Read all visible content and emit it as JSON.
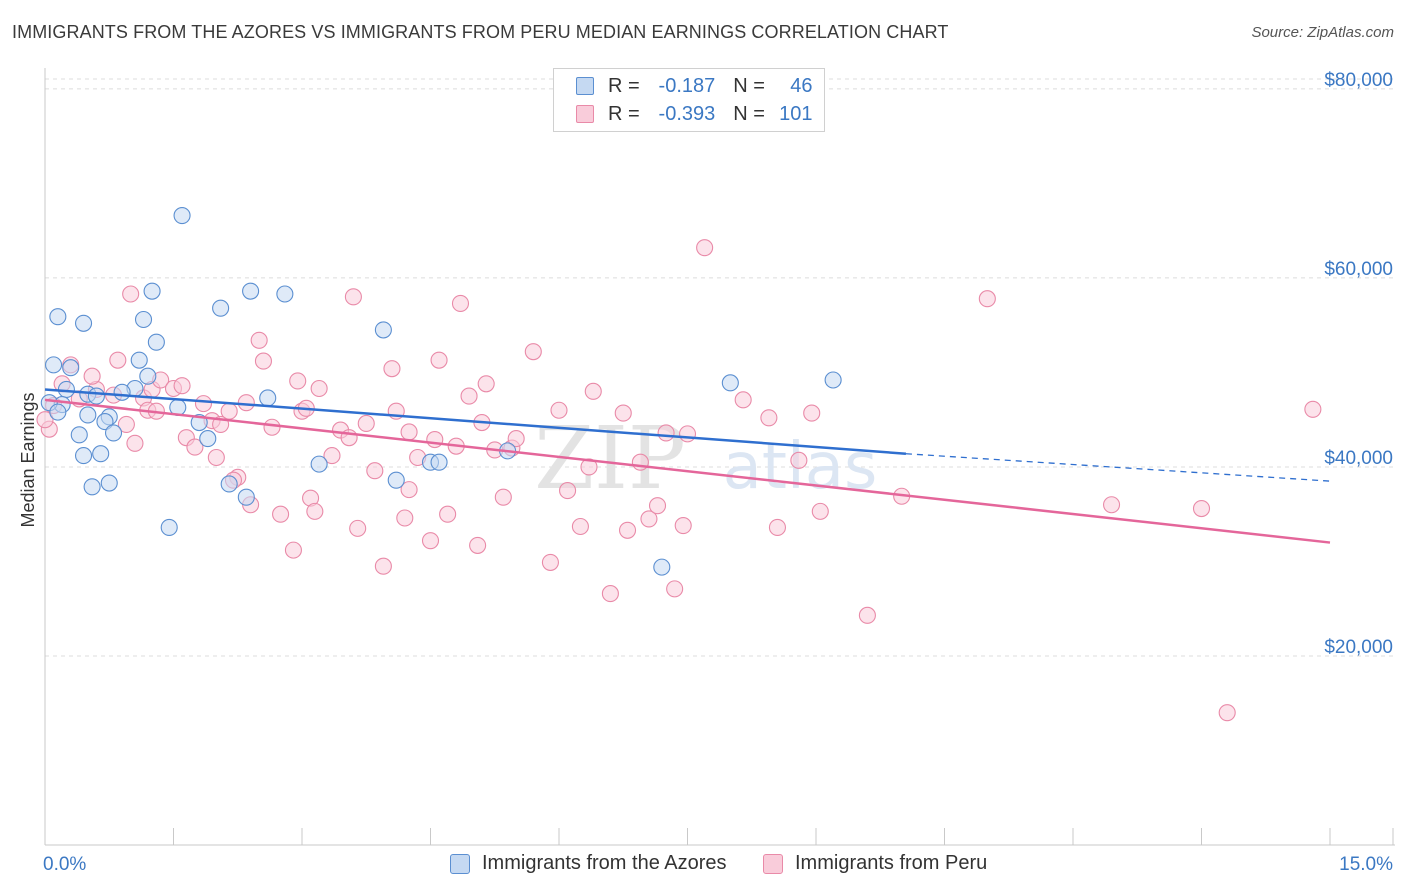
{
  "title": "IMMIGRANTS FROM THE AZORES VS IMMIGRANTS FROM PERU MEDIAN EARNINGS CORRELATION CHART",
  "source": "Source: ZipAtlas.com",
  "watermark": {
    "zip": "ZIP",
    "atlas": "atlas"
  },
  "legend": {
    "rows": [
      {
        "r_label": "R =",
        "r_value": "-0.187",
        "n_label": "N =",
        "n_value": "46",
        "fill": "#c5d9f2",
        "stroke": "#5b8fd1"
      },
      {
        "r_label": "R =",
        "r_value": "-0.393",
        "n_label": "N =",
        "n_value": "101",
        "fill": "#f9ccda",
        "stroke": "#e98aa8"
      }
    ]
  },
  "colors": {
    "azores_fill": "#c5d9f2",
    "azores_stroke": "#5b8fd1",
    "azores_line": "#2f6fcf",
    "peru_fill": "#f9ccda",
    "peru_stroke": "#e98aa8",
    "peru_line": "#e4669a",
    "axis_label": "#3b78c3",
    "grid": "#dcdcdc"
  },
  "chart_data": {
    "type": "scatter",
    "title": "IMMIGRANTS FROM THE AZORES VS IMMIGRANTS FROM PERU MEDIAN EARNINGS CORRELATION CHART",
    "xlabel": "",
    "ylabel": "Median Earnings",
    "xlim": [
      0,
      15
    ],
    "ylim": [
      0,
      82000
    ],
    "x_tick_labels": [
      "0.0%",
      "15.0%"
    ],
    "y_ticks": [
      20000,
      40000,
      60000,
      80000
    ],
    "y_tick_labels": [
      "$20,000",
      "$40,000",
      "$60,000",
      "$80,000"
    ],
    "grid": "horizontal dashed",
    "legend_position": "bottom",
    "series": [
      {
        "name": "Immigrants from the Azores",
        "color": "#5b8fd1",
        "points": [
          [
            0.15,
            55900
          ],
          [
            0.45,
            55200
          ],
          [
            0.1,
            50800
          ],
          [
            0.3,
            50500
          ],
          [
            0.25,
            48200
          ],
          [
            0.5,
            47700
          ],
          [
            0.6,
            47500
          ],
          [
            0.2,
            46600
          ],
          [
            0.05,
            46800
          ],
          [
            0.15,
            45800
          ],
          [
            0.5,
            45500
          ],
          [
            0.75,
            45300
          ],
          [
            0.7,
            44800
          ],
          [
            0.4,
            43400
          ],
          [
            0.8,
            43600
          ],
          [
            0.45,
            41200
          ],
          [
            0.65,
            41400
          ],
          [
            0.55,
            37900
          ],
          [
            0.75,
            38300
          ],
          [
            1.1,
            51300
          ],
          [
            1.2,
            49600
          ],
          [
            1.15,
            55600
          ],
          [
            1.3,
            53200
          ],
          [
            1.25,
            58600
          ],
          [
            1.05,
            48300
          ],
          [
            1.6,
            66600
          ],
          [
            1.55,
            46300
          ],
          [
            1.8,
            44700
          ],
          [
            1.9,
            43000
          ],
          [
            2.05,
            56800
          ],
          [
            2.15,
            38200
          ],
          [
            2.4,
            58600
          ],
          [
            2.35,
            36800
          ],
          [
            2.6,
            47300
          ],
          [
            2.8,
            58300
          ],
          [
            3.2,
            40300
          ],
          [
            3.95,
            54500
          ],
          [
            4.1,
            38600
          ],
          [
            4.5,
            40500
          ],
          [
            4.6,
            40500
          ],
          [
            5.4,
            41700
          ],
          [
            1.45,
            33600
          ],
          [
            7.2,
            29400
          ],
          [
            8.0,
            48900
          ],
          [
            9.2,
            49200
          ],
          [
            0.9,
            47900
          ]
        ]
      },
      {
        "name": "Immigrants from Peru",
        "color": "#e98aa8",
        "points": [
          [
            0.05,
            44000
          ],
          [
            0.1,
            46500
          ],
          [
            0.2,
            48800
          ],
          [
            0.3,
            50800
          ],
          [
            0.4,
            47200
          ],
          [
            0.6,
            48200
          ],
          [
            0.8,
            47600
          ],
          [
            0.85,
            51300
          ],
          [
            0.95,
            44500
          ],
          [
            1.0,
            58300
          ],
          [
            1.05,
            42500
          ],
          [
            1.15,
            47300
          ],
          [
            1.2,
            46000
          ],
          [
            1.25,
            48200
          ],
          [
            1.35,
            49200
          ],
          [
            1.5,
            48300
          ],
          [
            1.65,
            43100
          ],
          [
            1.75,
            42100
          ],
          [
            1.85,
            46700
          ],
          [
            1.95,
            44900
          ],
          [
            2.0,
            41000
          ],
          [
            2.05,
            44500
          ],
          [
            2.15,
            45900
          ],
          [
            2.25,
            38900
          ],
          [
            2.35,
            46800
          ],
          [
            2.4,
            36000
          ],
          [
            2.5,
            53400
          ],
          [
            2.55,
            51200
          ],
          [
            2.65,
            44200
          ],
          [
            2.75,
            35000
          ],
          [
            2.9,
            31200
          ],
          [
            3.0,
            45900
          ],
          [
            3.05,
            46200
          ],
          [
            3.1,
            36700
          ],
          [
            3.2,
            48300
          ],
          [
            3.35,
            41200
          ],
          [
            3.45,
            43900
          ],
          [
            3.55,
            43100
          ],
          [
            3.6,
            58000
          ],
          [
            3.65,
            33500
          ],
          [
            3.75,
            44600
          ],
          [
            3.85,
            39600
          ],
          [
            3.95,
            29500
          ],
          [
            4.05,
            50400
          ],
          [
            4.1,
            45900
          ],
          [
            4.2,
            34600
          ],
          [
            4.25,
            43700
          ],
          [
            4.35,
            41000
          ],
          [
            4.5,
            32200
          ],
          [
            4.55,
            42900
          ],
          [
            4.6,
            51300
          ],
          [
            4.7,
            35000
          ],
          [
            4.8,
            42200
          ],
          [
            4.85,
            57300
          ],
          [
            4.95,
            47500
          ],
          [
            5.05,
            31700
          ],
          [
            5.15,
            48800
          ],
          [
            5.25,
            41800
          ],
          [
            5.35,
            36800
          ],
          [
            5.45,
            42000
          ],
          [
            5.5,
            43000
          ],
          [
            5.7,
            52200
          ],
          [
            5.9,
            29900
          ],
          [
            6.0,
            46000
          ],
          [
            6.1,
            37500
          ],
          [
            6.25,
            33700
          ],
          [
            6.35,
            40000
          ],
          [
            6.4,
            48000
          ],
          [
            6.6,
            26600
          ],
          [
            6.75,
            45700
          ],
          [
            6.95,
            40500
          ],
          [
            7.05,
            34500
          ],
          [
            7.15,
            35900
          ],
          [
            7.25,
            43600
          ],
          [
            7.35,
            27100
          ],
          [
            7.45,
            33800
          ],
          [
            7.5,
            43500
          ],
          [
            7.7,
            63200
          ],
          [
            8.15,
            47100
          ],
          [
            8.45,
            45200
          ],
          [
            8.55,
            33600
          ],
          [
            8.95,
            45700
          ],
          [
            9.05,
            35300
          ],
          [
            9.6,
            24300
          ],
          [
            10.0,
            36900
          ],
          [
            11.0,
            57800
          ],
          [
            12.45,
            36000
          ],
          [
            13.5,
            35600
          ],
          [
            13.8,
            14000
          ],
          [
            14.8,
            46100
          ],
          [
            2.2,
            38600
          ],
          [
            3.15,
            35300
          ],
          [
            0.55,
            49600
          ],
          [
            1.3,
            45900
          ],
          [
            1.6,
            48600
          ],
          [
            2.95,
            49100
          ],
          [
            4.25,
            37600
          ],
          [
            5.1,
            44700
          ],
          [
            6.8,
            33300
          ],
          [
            8.8,
            40700
          ],
          [
            0.0,
            45000
          ]
        ]
      }
    ],
    "trendlines": [
      {
        "series": "Immigrants from the Azores",
        "solid": [
          [
            0,
            48200
          ],
          [
            10.05,
            41400
          ]
        ],
        "dashed_to": [
          15,
          38500
        ]
      },
      {
        "series": "Immigrants from Peru",
        "solid": [
          [
            0,
            47100
          ],
          [
            15,
            32000
          ]
        ]
      }
    ]
  },
  "bottom_legend": [
    {
      "label": "Immigrants from the Azores",
      "fill": "#c5d9f2",
      "stroke": "#5b8fd1"
    },
    {
      "label": "Immigrants from Peru",
      "fill": "#f9ccda",
      "stroke": "#e98aa8"
    }
  ]
}
